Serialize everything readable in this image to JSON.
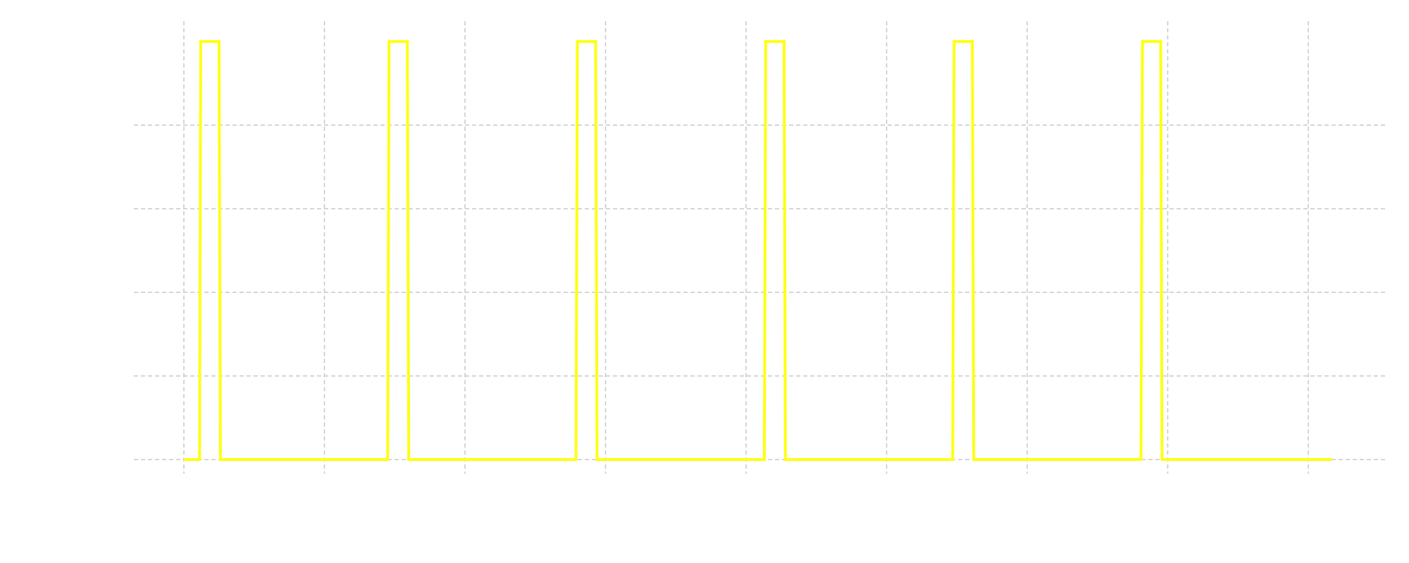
{
  "chart_data": {
    "type": "line",
    "title": "",
    "xlabel": "",
    "ylabel": "",
    "xlim": [
      0,
      3940
    ],
    "ylim": [
      -0.05,
      1.05
    ],
    "grid": true,
    "legend": "none",
    "x_gridlines": [
      0,
      500,
      1000,
      1500,
      2000,
      2500,
      3000,
      3500,
      4000
    ],
    "y_gridlines": [
      0,
      0.2,
      0.4,
      0.6,
      0.8
    ],
    "series": [
      {
        "color": "#ffff14",
        "x": [
          0,
          56,
          60,
          125,
          130,
          725,
          730,
          795,
          800,
          1395,
          1400,
          1465,
          1470,
          2065,
          2070,
          2135,
          2140,
          2735,
          2740,
          2805,
          2810,
          3405,
          3410,
          3475,
          3480,
          4085
        ],
        "y": [
          0,
          0,
          1,
          1,
          0,
          0,
          1,
          1,
          0,
          0,
          1,
          1,
          0,
          0,
          1,
          1,
          0,
          0,
          1,
          1,
          0,
          0,
          1,
          1,
          0,
          0
        ]
      }
    ]
  }
}
